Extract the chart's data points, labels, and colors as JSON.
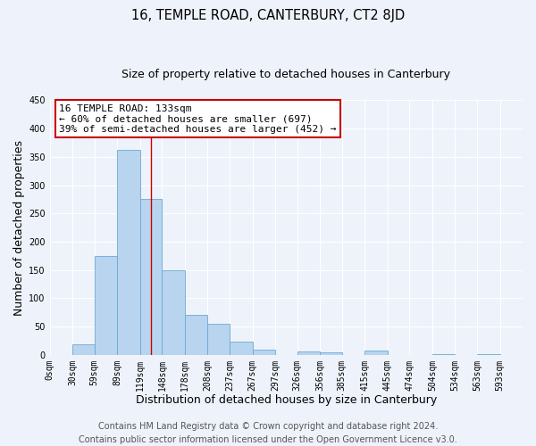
{
  "title": "16, TEMPLE ROAD, CANTERBURY, CT2 8JD",
  "subtitle": "Size of property relative to detached houses in Canterbury",
  "xlabel": "Distribution of detached houses by size in Canterbury",
  "ylabel": "Number of detached properties",
  "footer_line1": "Contains HM Land Registry data © Crown copyright and database right 2024.",
  "footer_line2": "Contains public sector information licensed under the Open Government Licence v3.0.",
  "bar_left_edges": [
    0,
    30,
    59,
    89,
    119,
    148,
    178,
    208,
    237,
    267,
    297,
    326,
    356,
    385,
    415,
    445,
    474,
    504,
    534,
    563
  ],
  "bar_widths": [
    30,
    29,
    30,
    30,
    29,
    30,
    30,
    29,
    30,
    30,
    29,
    30,
    29,
    30,
    30,
    29,
    30,
    30,
    29,
    30
  ],
  "bar_heights": [
    0,
    18,
    175,
    362,
    275,
    150,
    70,
    55,
    23,
    9,
    0,
    6,
    5,
    0,
    8,
    0,
    0,
    1,
    0,
    1
  ],
  "bar_color": "#b8d4ee",
  "bar_edge_color": "#6aaad4",
  "x_tick_labels": [
    "0sqm",
    "30sqm",
    "59sqm",
    "89sqm",
    "119sqm",
    "148sqm",
    "178sqm",
    "208sqm",
    "237sqm",
    "267sqm",
    "297sqm",
    "326sqm",
    "356sqm",
    "385sqm",
    "415sqm",
    "445sqm",
    "474sqm",
    "504sqm",
    "534sqm",
    "563sqm",
    "593sqm"
  ],
  "x_tick_positions": [
    0,
    30,
    59,
    89,
    119,
    148,
    178,
    208,
    237,
    267,
    297,
    326,
    356,
    385,
    415,
    445,
    474,
    504,
    534,
    563,
    593
  ],
  "ylim": [
    0,
    450
  ],
  "xlim": [
    0,
    623
  ],
  "yticks": [
    0,
    50,
    100,
    150,
    200,
    250,
    300,
    350,
    400,
    450
  ],
  "vline_x": 133,
  "vline_color": "#cc0000",
  "annot_line1": "16 TEMPLE ROAD: 133sqm",
  "annot_line2": "← 60% of detached houses are smaller (697)",
  "annot_line3": "39% of semi-detached houses are larger (452) →",
  "annotation_box_color": "#cc0000",
  "background_color": "#eef2fa",
  "grid_color": "#ffffff",
  "title_fontsize": 10.5,
  "subtitle_fontsize": 9,
  "axis_label_fontsize": 9,
  "tick_fontsize": 7,
  "annotation_fontsize": 8,
  "footer_fontsize": 7
}
